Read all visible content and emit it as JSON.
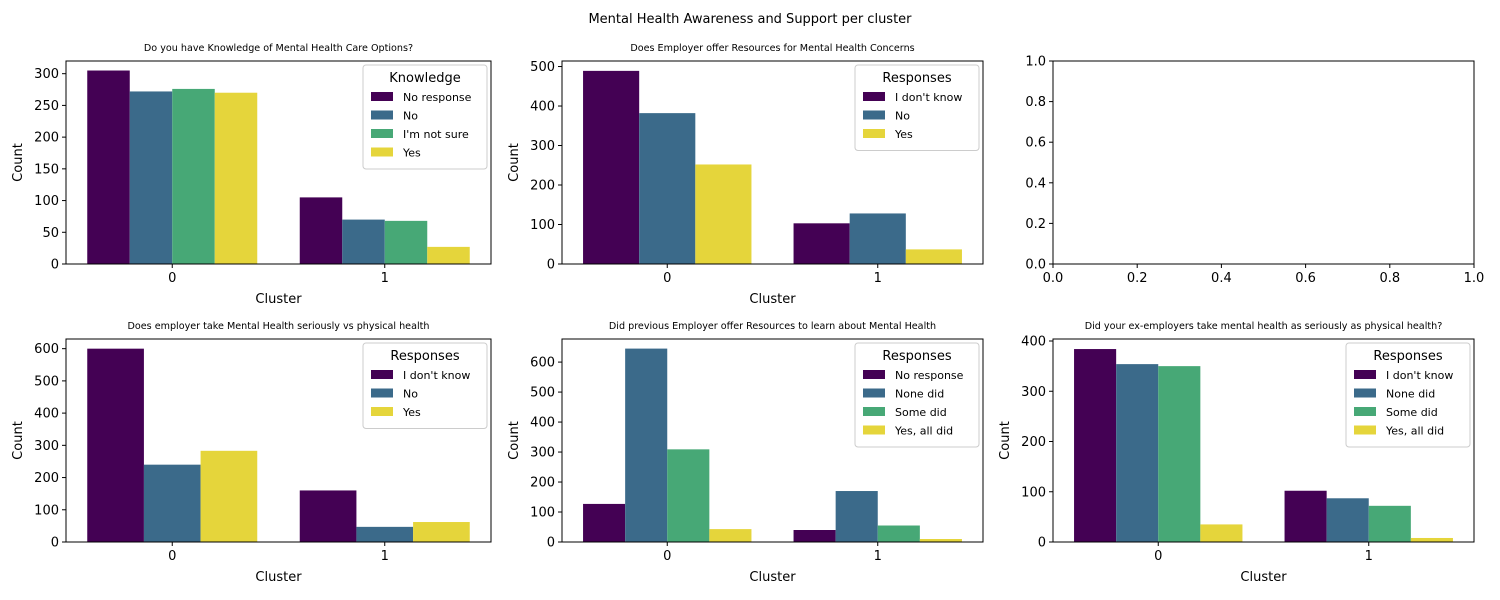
{
  "figure": {
    "title": "Mental Health Awareness and Support per cluster"
  },
  "palette": {
    "c0": "#440154",
    "c1": "#3b6a8a",
    "c2": "#47a876",
    "c3": "#e5d53b"
  },
  "chart_data": [
    {
      "type": "bar",
      "title": "Do you have Knowledge of Mental Health Care Options?",
      "xlabel": "Cluster",
      "ylabel": "Count",
      "categories": [
        "0",
        "1"
      ],
      "ylim": [
        0,
        320
      ],
      "yticks": [
        0,
        50,
        100,
        150,
        200,
        250,
        300
      ],
      "legend": {
        "title": "Knowledge",
        "placement": "top-right"
      },
      "series": [
        {
          "name": "No response",
          "color": "#440154",
          "values": [
            305,
            105
          ]
        },
        {
          "name": "No",
          "color": "#3b6a8a",
          "values": [
            272,
            70
          ]
        },
        {
          "name": "I'm not sure",
          "color": "#47a876",
          "values": [
            276,
            68
          ]
        },
        {
          "name": "Yes",
          "color": "#e5d53b",
          "values": [
            270,
            27
          ]
        }
      ]
    },
    {
      "type": "bar",
      "title": "Does Employer offer Resources for Mental Health Concerns",
      "xlabel": "Cluster",
      "ylabel": "Count",
      "categories": [
        "0",
        "1"
      ],
      "ylim": [
        0,
        514
      ],
      "yticks": [
        0,
        100,
        200,
        300,
        400,
        500
      ],
      "legend": {
        "title": "Responses",
        "placement": "top-right"
      },
      "series": [
        {
          "name": "I don't know",
          "color": "#440154",
          "values": [
            489,
            103
          ]
        },
        {
          "name": "No",
          "color": "#3b6a8a",
          "values": [
            382,
            128
          ]
        },
        {
          "name": "Yes",
          "color": "#e5d53b",
          "values": [
            252,
            37
          ]
        }
      ]
    },
    {
      "type": "empty",
      "xlim": [
        0,
        1
      ],
      "ylim": [
        0,
        1
      ],
      "xticks": [
        "0.0",
        "0.2",
        "0.4",
        "0.6",
        "0.8",
        "1.0"
      ],
      "yticks": [
        "0.0",
        "0.2",
        "0.4",
        "0.6",
        "0.8",
        "1.0"
      ]
    },
    {
      "type": "bar",
      "title": "Does employer take Mental Health seriously vs physical health",
      "xlabel": "Cluster",
      "ylabel": "Count",
      "categories": [
        "0",
        "1"
      ],
      "ylim": [
        0,
        630
      ],
      "yticks": [
        0,
        100,
        200,
        300,
        400,
        500,
        600
      ],
      "legend": {
        "title": "Responses",
        "placement": "top-right"
      },
      "series": [
        {
          "name": "I don't know",
          "color": "#440154",
          "values": [
            600,
            160
          ]
        },
        {
          "name": "No",
          "color": "#3b6a8a",
          "values": [
            240,
            47
          ]
        },
        {
          "name": "Yes",
          "color": "#e5d53b",
          "values": [
            283,
            62
          ]
        }
      ]
    },
    {
      "type": "bar",
      "title": "Did previous Employer offer Resources to learn about Mental Health",
      "xlabel": "Cluster",
      "ylabel": "Count",
      "categories": [
        "0",
        "1"
      ],
      "ylim": [
        0,
        677
      ],
      "yticks": [
        0,
        100,
        200,
        300,
        400,
        500,
        600
      ],
      "legend": {
        "title": "Responses",
        "placement": "top-right"
      },
      "series": [
        {
          "name": "No response",
          "color": "#440154",
          "values": [
            127,
            40
          ]
        },
        {
          "name": "None did",
          "color": "#3b6a8a",
          "values": [
            645,
            170
          ]
        },
        {
          "name": "Some did",
          "color": "#47a876",
          "values": [
            309,
            55
          ]
        },
        {
          "name": "Yes, all did",
          "color": "#e5d53b",
          "values": [
            43,
            10
          ]
        }
      ]
    },
    {
      "type": "bar",
      "title": "Did your ex-employers take mental health as seriously as physical health?",
      "xlabel": "Cluster",
      "ylabel": "Count",
      "categories": [
        "0",
        "1"
      ],
      "ylim": [
        0,
        404
      ],
      "yticks": [
        0,
        100,
        200,
        300,
        400
      ],
      "legend": {
        "title": "Responses",
        "placement": "top-right"
      },
      "series": [
        {
          "name": "I don't know",
          "color": "#440154",
          "values": [
            384,
            102
          ]
        },
        {
          "name": "None did",
          "color": "#3b6a8a",
          "values": [
            354,
            87
          ]
        },
        {
          "name": "Some did",
          "color": "#47a876",
          "values": [
            350,
            72
          ]
        },
        {
          "name": "Yes, all did",
          "color": "#e5d53b",
          "values": [
            35,
            8
          ]
        }
      ]
    }
  ]
}
